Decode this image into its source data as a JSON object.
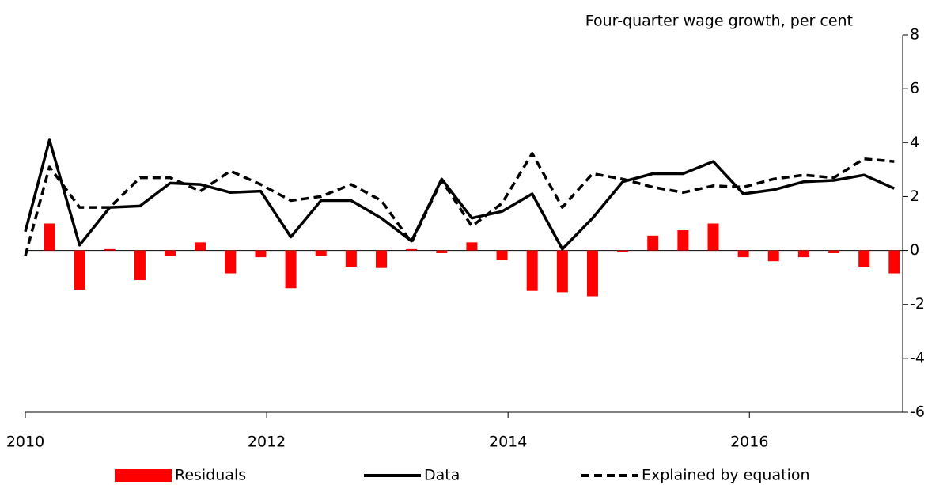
{
  "chart_data": {
    "type": "bar_line",
    "axis_label": "Four-quarter wage growth, per cent",
    "x": [
      2010.0,
      2010.2,
      2010.45,
      2010.7,
      2010.95,
      2011.2,
      2011.45,
      2011.7,
      2011.95,
      2012.2,
      2012.45,
      2012.7,
      2012.95,
      2013.2,
      2013.45,
      2013.7,
      2013.95,
      2014.2,
      2014.45,
      2014.7,
      2014.95,
      2015.2,
      2015.45,
      2015.7,
      2015.95,
      2016.2,
      2016.45,
      2016.7,
      2016.95,
      2017.2
    ],
    "series": [
      {
        "name": "Residuals",
        "kind": "bar",
        "color": "#ff0000",
        "values": [
          null,
          1.0,
          -1.45,
          0.05,
          -1.1,
          -0.2,
          0.3,
          -0.85,
          -0.25,
          -1.4,
          -0.2,
          -0.6,
          -0.65,
          0.05,
          -0.1,
          0.3,
          -0.35,
          -1.5,
          -1.55,
          -1.7,
          -0.05,
          0.55,
          0.75,
          1.0,
          -0.25,
          -0.4,
          -0.25,
          -0.1,
          -0.6,
          -0.85
        ]
      },
      {
        "name": "Data",
        "kind": "line",
        "dash": false,
        "color": "#000000",
        "values": [
          0.7,
          4.1,
          0.2,
          1.6,
          1.65,
          2.5,
          2.45,
          2.15,
          2.2,
          0.5,
          1.85,
          1.85,
          1.2,
          0.35,
          2.65,
          1.2,
          1.45,
          2.1,
          0.05,
          1.2,
          2.55,
          2.85,
          2.85,
          3.3,
          2.1,
          2.25,
          2.55,
          2.6,
          2.8,
          2.3
        ]
      },
      {
        "name": "Explained by equation",
        "kind": "line",
        "dash": true,
        "color": "#000000",
        "values": [
          -0.2,
          3.1,
          1.6,
          1.6,
          2.7,
          2.7,
          2.2,
          2.95,
          2.45,
          1.85,
          2.0,
          2.45,
          1.85,
          0.3,
          2.6,
          0.9,
          1.75,
          3.6,
          1.6,
          2.85,
          2.65,
          2.35,
          2.15,
          2.4,
          2.35,
          2.65,
          2.8,
          2.7,
          3.4,
          3.3
        ]
      }
    ],
    "xlim": [
      2010,
      2017.27
    ],
    "xticks": [
      2010,
      2012,
      2014,
      2016
    ],
    "ylim": [
      -6,
      8
    ],
    "yticks": [
      -6,
      -4,
      -2,
      0,
      2,
      4,
      6,
      8
    ],
    "legend": "bottom"
  }
}
